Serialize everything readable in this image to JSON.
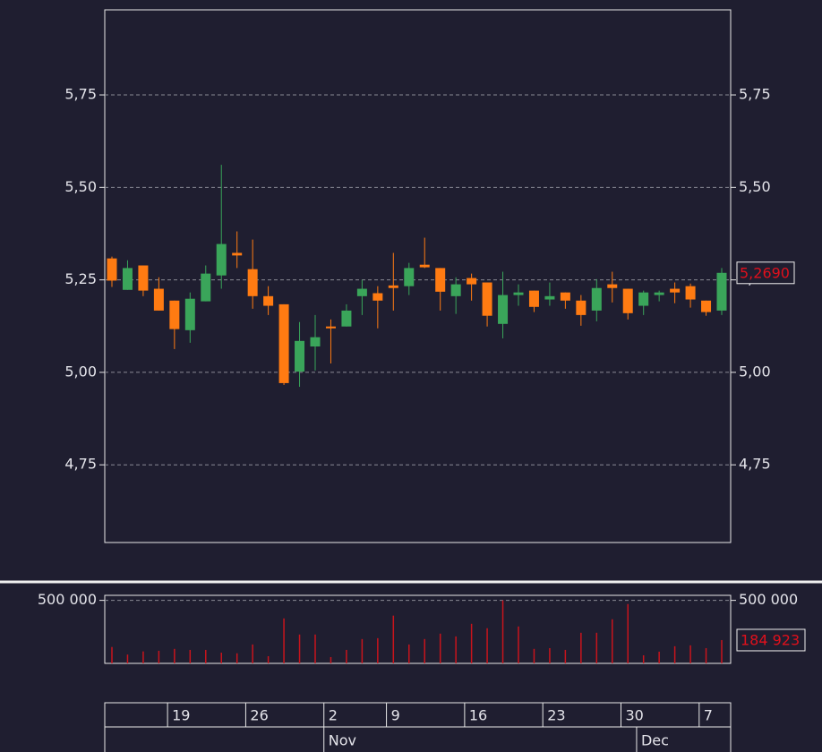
{
  "chart_data": [
    {
      "type": "candlestick",
      "up_color": "#3aa55a",
      "down_color": "#ff7b12",
      "ylim": [
        4.54,
        5.98
      ],
      "yticks": [
        {
          "value": 4.75,
          "label": "4,75"
        },
        {
          "value": 5.0,
          "label": "5,00"
        },
        {
          "value": 5.25,
          "label": "5,25"
        },
        {
          "value": 5.5,
          "label": "5,50"
        },
        {
          "value": 5.75,
          "label": "5,75"
        }
      ],
      "grid": true,
      "last_price": {
        "value": 5.269,
        "label": "5,2690"
      },
      "open": [
        5.308,
        5.223,
        5.289,
        5.226,
        5.194,
        5.114,
        5.192,
        5.262,
        5.323,
        5.279,
        5.206,
        5.184,
        5.002,
        5.07,
        5.124,
        5.124,
        5.206,
        5.214,
        5.235,
        5.233,
        5.291,
        5.282,
        5.206,
        5.255,
        5.243,
        5.131,
        5.209,
        5.221,
        5.197,
        5.216,
        5.194,
        5.167,
        5.238,
        5.226,
        5.18,
        5.209,
        5.226,
        5.233,
        5.194,
        5.167
      ],
      "high": [
        5.313,
        5.303,
        5.289,
        5.257,
        5.194,
        5.216,
        5.289,
        5.561,
        5.381,
        5.359,
        5.233,
        5.184,
        5.136,
        5.155,
        5.143,
        5.184,
        5.25,
        5.233,
        5.323,
        5.296,
        5.364,
        5.282,
        5.257,
        5.267,
        5.243,
        5.272,
        5.238,
        5.221,
        5.243,
        5.216,
        5.209,
        5.252,
        5.272,
        5.226,
        5.221,
        5.221,
        5.243,
        5.24,
        5.194,
        5.282
      ],
      "low": [
        5.231,
        5.223,
        5.206,
        5.167,
        5.063,
        5.08,
        5.192,
        5.226,
        5.282,
        5.172,
        5.155,
        4.966,
        4.961,
        5.005,
        5.024,
        5.124,
        5.155,
        5.119,
        5.167,
        5.209,
        5.282,
        5.167,
        5.158,
        5.194,
        5.124,
        5.092,
        5.18,
        5.163,
        5.18,
        5.172,
        5.126,
        5.138,
        5.189,
        5.143,
        5.155,
        5.192,
        5.187,
        5.175,
        5.153,
        5.155
      ],
      "close": [
        5.248,
        5.282,
        5.221,
        5.167,
        5.117,
        5.199,
        5.267,
        5.347,
        5.316,
        5.206,
        5.18,
        4.971,
        5.085,
        5.095,
        5.119,
        5.167,
        5.226,
        5.194,
        5.228,
        5.282,
        5.284,
        5.218,
        5.238,
        5.238,
        5.153,
        5.209,
        5.216,
        5.177,
        5.206,
        5.194,
        5.155,
        5.228,
        5.228,
        5.16,
        5.216,
        5.216,
        5.216,
        5.197,
        5.163,
        5.269
      ],
      "categories": [
        null,
        null,
        null,
        null,
        "19",
        null,
        null,
        null,
        null,
        "26",
        null,
        null,
        null,
        null,
        "2",
        null,
        null,
        null,
        "9",
        null,
        null,
        null,
        null,
        "16",
        null,
        null,
        null,
        null,
        "23",
        null,
        null,
        null,
        null,
        "30",
        null,
        null,
        null,
        null,
        "7",
        null
      ],
      "months": [
        null,
        null,
        null,
        null,
        null,
        null,
        null,
        null,
        null,
        null,
        null,
        null,
        null,
        null,
        "Nov",
        null,
        null,
        null,
        null,
        null,
        null,
        null,
        null,
        null,
        null,
        null,
        null,
        null,
        null,
        null,
        null,
        null,
        null,
        null,
        "Dec",
        null,
        null,
        null,
        null,
        null
      ]
    },
    {
      "type": "bar",
      "color": "#c8141c",
      "ylim": [
        0,
        540000
      ],
      "yticks": [
        {
          "value": 500000,
          "label": "500 000"
        }
      ],
      "grid": true,
      "last_value": {
        "value": 184923,
        "label": "184 923"
      },
      "values": [
        130000,
        70000,
        95000,
        100000,
        115000,
        107000,
        107000,
        85000,
        80000,
        150000,
        57000,
        357000,
        229000,
        229000,
        50000,
        107000,
        193000,
        200000,
        379000,
        150000,
        193000,
        236000,
        214000,
        314000,
        279000,
        500000,
        293000,
        115000,
        121000,
        107000,
        243000,
        243000,
        350000,
        471000,
        64000,
        93000,
        136000,
        143000,
        121000,
        184923
      ]
    }
  ]
}
